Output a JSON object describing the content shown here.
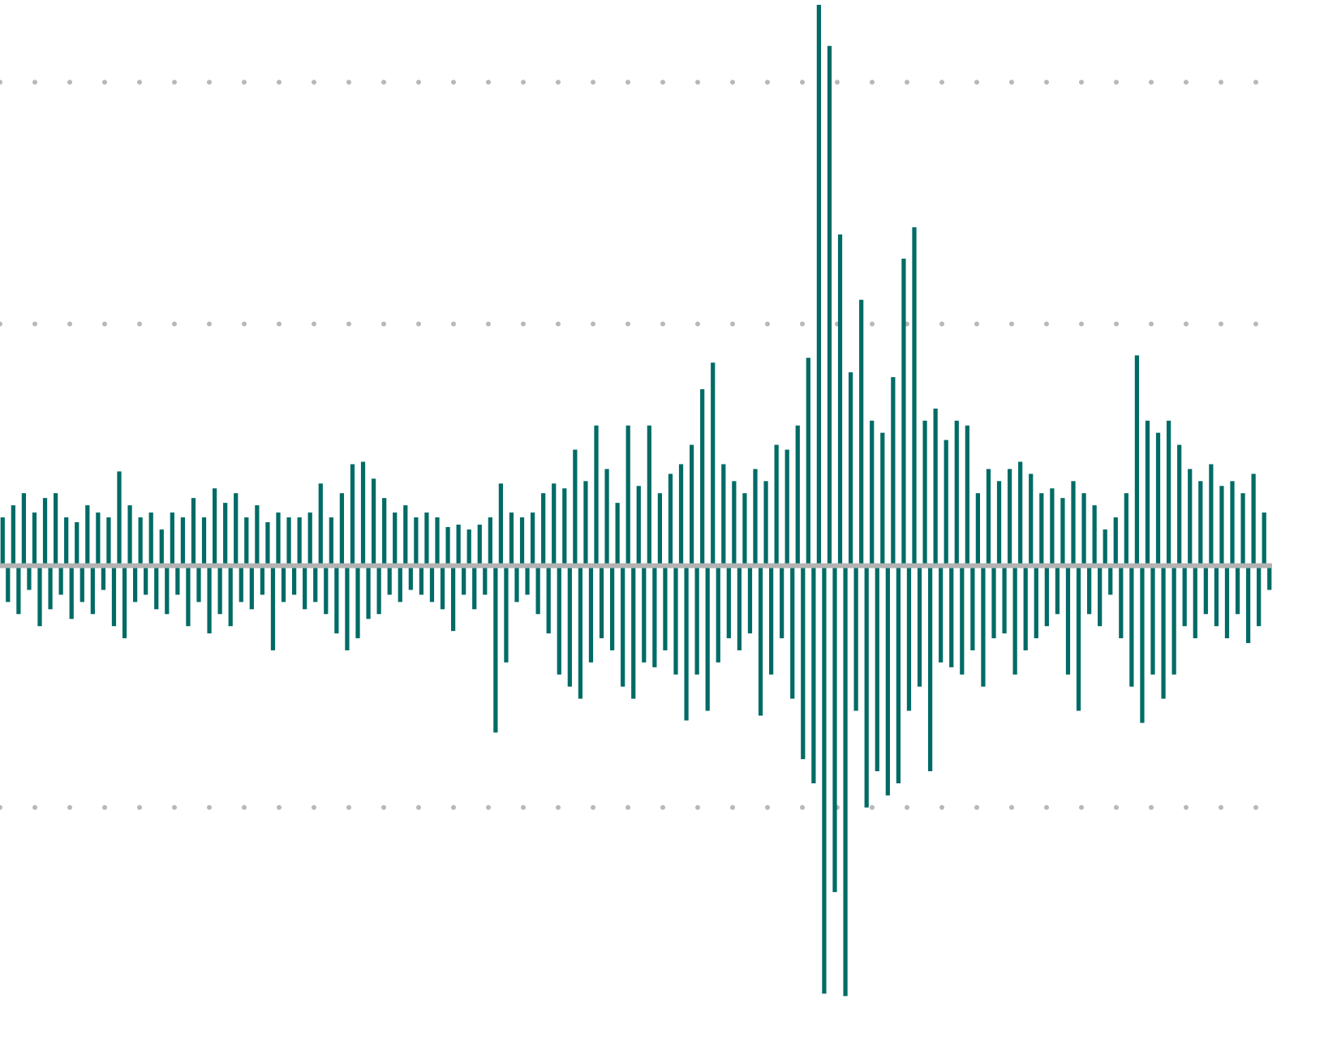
{
  "chart_data": {
    "type": "bar",
    "values": [
      0.2,
      -0.15,
      0.25,
      -0.2,
      0.3,
      -0.1,
      0.22,
      -0.25,
      0.28,
      -0.18,
      0.3,
      -0.12,
      0.2,
      -0.22,
      0.18,
      -0.15,
      0.25,
      -0.2,
      0.22,
      -0.1,
      0.2,
      -0.25,
      0.39,
      -0.3,
      0.25,
      -0.15,
      0.2,
      -0.12,
      0.22,
      -0.18,
      0.15,
      -0.2,
      0.22,
      -0.12,
      0.2,
      -0.25,
      0.28,
      -0.15,
      0.2,
      -0.28,
      0.32,
      -0.2,
      0.26,
      -0.25,
      0.3,
      -0.15,
      0.2,
      -0.18,
      0.25,
      -0.12,
      0.18,
      -0.35,
      0.22,
      -0.15,
      0.2,
      -0.12,
      0.2,
      -0.18,
      0.22,
      -0.15,
      0.34,
      -0.2,
      0.2,
      -0.28,
      0.3,
      -0.35,
      0.42,
      -0.3,
      0.43,
      -0.22,
      0.36,
      -0.2,
      0.28,
      -0.12,
      0.22,
      -0.15,
      0.25,
      -0.1,
      0.2,
      -0.12,
      0.22,
      -0.15,
      0.2,
      -0.18,
      0.16,
      -0.27,
      0.17,
      -0.12,
      0.15,
      -0.18,
      0.17,
      -0.12,
      0.2,
      -0.69,
      0.34,
      -0.4,
      0.22,
      -0.15,
      0.2,
      -0.12,
      0.22,
      -0.2,
      0.3,
      -0.28,
      0.34,
      -0.45,
      0.32,
      -0.5,
      0.48,
      -0.55,
      0.35,
      -0.4,
      0.58,
      -0.3,
      0.4,
      -0.35,
      0.26,
      -0.5,
      0.58,
      -0.55,
      0.33,
      -0.4,
      0.58,
      -0.42,
      0.3,
      -0.35,
      0.38,
      -0.45,
      0.42,
      -0.64,
      0.5,
      -0.45,
      0.73,
      -0.6,
      0.84,
      -0.4,
      0.42,
      -0.3,
      0.35,
      -0.35,
      0.3,
      -0.28,
      0.4,
      -0.62,
      0.35,
      -0.45,
      0.5,
      -0.3,
      0.48,
      -0.55,
      0.58,
      -0.8,
      0.86,
      -0.9,
      2.32,
      -1.77,
      2.15,
      -1.35,
      1.37,
      -1.78,
      0.8,
      -0.6,
      1.1,
      -1.0,
      0.6,
      -0.85,
      0.55,
      -0.95,
      0.78,
      -0.9,
      1.27,
      -0.6,
      1.4,
      -0.5,
      0.6,
      -0.85,
      0.65,
      -0.4,
      0.52,
      -0.42,
      0.6,
      -0.45,
      0.58,
      -0.35,
      0.3,
      -0.5,
      0.4,
      -0.3,
      0.35,
      -0.28,
      0.4,
      -0.45,
      0.43,
      -0.35,
      0.38,
      -0.3,
      0.3,
      -0.25,
      0.32,
      -0.2,
      0.28,
      -0.45,
      0.35,
      -0.6,
      0.3,
      -0.2,
      0.25,
      -0.25,
      0.15,
      -0.12,
      0.2,
      -0.3,
      0.3,
      -0.5,
      0.87,
      -0.65,
      0.6,
      -0.45,
      0.55,
      -0.55,
      0.6,
      -0.45,
      0.5,
      -0.25,
      0.4,
      -0.3,
      0.35,
      -0.2,
      0.42,
      -0.25,
      0.33,
      -0.3,
      0.35,
      -0.2,
      0.3,
      -0.32,
      0.38,
      -0.25,
      0.22,
      -0.1
    ],
    "color": "#006b66",
    "ylim": [
      -1.97,
      2.34
    ],
    "yticks": [
      -1,
      0,
      1,
      2
    ],
    "grid": true
  }
}
